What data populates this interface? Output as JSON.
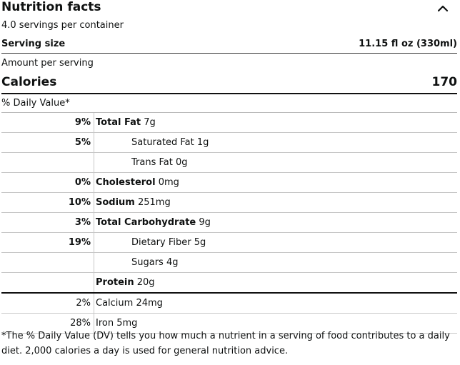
{
  "panel": {
    "title": "Nutrition facts",
    "toggle_icon": "chevron-up-icon",
    "servings_per_container": "4.0 servings per container",
    "serving_size_label": "Serving size",
    "serving_size_value": "11.15 fl oz (330ml)",
    "amount_per_serving": "Amount per serving",
    "calories_label": "Calories",
    "calories_value": "170",
    "daily_value_label": "% Daily Value*"
  },
  "nutrients": [
    {
      "pct": "9%",
      "name": "Total Fat",
      "amount": " 7g",
      "bold_name": true,
      "bold_pct": true,
      "indent": false
    },
    {
      "pct": "5%",
      "name": "Saturated Fat 1g",
      "amount": "",
      "bold_name": false,
      "bold_pct": true,
      "indent": true
    },
    {
      "pct": "",
      "name": "Trans Fat 0g",
      "amount": "",
      "bold_name": false,
      "bold_pct": false,
      "indent": true
    },
    {
      "pct": "0%",
      "name": "Cholesterol",
      "amount": " 0mg",
      "bold_name": true,
      "bold_pct": true,
      "indent": false
    },
    {
      "pct": "10%",
      "name": "Sodium",
      "amount": " 251mg",
      "bold_name": true,
      "bold_pct": true,
      "indent": false
    },
    {
      "pct": "3%",
      "name": "Total Carbohydrate",
      "amount": " 9g",
      "bold_name": true,
      "bold_pct": true,
      "indent": false
    },
    {
      "pct": "19%",
      "name": "Dietary Fiber 5g",
      "amount": "",
      "bold_name": false,
      "bold_pct": true,
      "indent": true
    },
    {
      "pct": "",
      "name": "Sugars 4g",
      "amount": "",
      "bold_name": false,
      "bold_pct": false,
      "indent": true
    },
    {
      "pct": "",
      "name": "Protein",
      "amount": " 20g",
      "bold_name": true,
      "bold_pct": false,
      "indent": false
    }
  ],
  "minerals": [
    {
      "pct": "2%",
      "name": "Calcium 24mg"
    },
    {
      "pct": "28%",
      "name": "Iron 5mg"
    }
  ],
  "footnote": "*The % Daily Value (DV) tells you how much a nutrient in a serving of food contributes to a daily diet. 2,000 calories a day is used for general nutrition advice."
}
